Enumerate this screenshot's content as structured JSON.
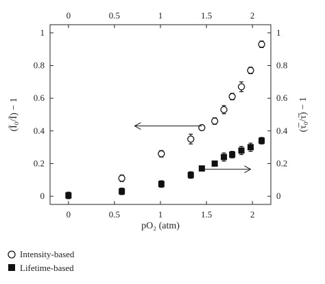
{
  "chart_data": {
    "type": "scatter",
    "xlabel": "pO₂ (atm)",
    "ylabel_left": "(Ĩ₀/Ĩ) − 1",
    "ylabel_right": "(τ̅₀/τ̅) − 1",
    "xlim": [
      -0.2,
      2.2
    ],
    "ylim": [
      -0.05,
      1.05
    ],
    "x_ticks": [
      0,
      0.5,
      1,
      1.5,
      2
    ],
    "x_tick_labels": [
      "0",
      "0.5",
      "1",
      "1.5",
      "2"
    ],
    "y_ticks": [
      0,
      0.2,
      0.4,
      0.6,
      0.8,
      1
    ],
    "y_tick_labels": [
      "0",
      "0.2",
      "0.4",
      "0.6",
      "0.8",
      "1"
    ],
    "grid": false,
    "legend_position": "bottom-left",
    "series": [
      {
        "name": "Intensity-based",
        "marker": "open-circle",
        "x": [
          0.58,
          1.01,
          1.33,
          1.45,
          1.59,
          1.69,
          1.78,
          1.88,
          1.98,
          2.1
        ],
        "y": [
          0.11,
          0.26,
          0.35,
          0.42,
          0.46,
          0.53,
          0.61,
          0.67,
          0.77,
          0.93
        ],
        "err": [
          0.02,
          0.02,
          0.03,
          0.015,
          0.02,
          0.025,
          0.02,
          0.03,
          0.02,
          0.02
        ]
      },
      {
        "name": "Lifetime-based",
        "marker": "filled-square",
        "x": [
          0.0,
          0.58,
          1.01,
          1.33,
          1.45,
          1.59,
          1.69,
          1.78,
          1.88,
          1.98,
          2.1
        ],
        "y": [
          0.005,
          0.03,
          0.075,
          0.13,
          0.17,
          0.2,
          0.24,
          0.255,
          0.28,
          0.3,
          0.34
        ],
        "err": [
          0.02,
          0.02,
          0.02,
          0.02,
          0.01,
          0.015,
          0.025,
          0.02,
          0.025,
          0.025,
          0.02
        ]
      }
    ],
    "annotations": [
      {
        "type": "arrow",
        "from": [
          1.45,
          0.43
        ],
        "to": [
          0.72,
          0.43
        ],
        "meaning": "left axis"
      },
      {
        "type": "arrow",
        "from": [
          1.45,
          0.165
        ],
        "to": [
          1.98,
          0.165
        ],
        "meaning": "right axis"
      }
    ],
    "colors": {
      "marker": "#111111",
      "axis": "#222222"
    }
  }
}
